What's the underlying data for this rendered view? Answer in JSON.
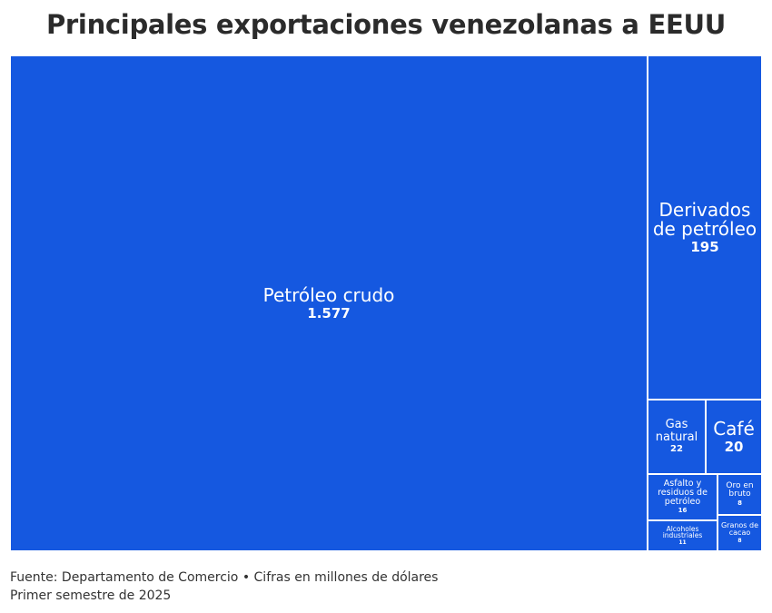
{
  "title": "Principales exportaciones venezolanas a EEUU",
  "source_line1": "Fuente: Departamento de Comercio • Cifras en millones de dólares",
  "source_line2": "Primer semestre de 2025",
  "colors": {
    "tile": "#1558e0",
    "border": "#ffffff",
    "text": "#ffffff"
  },
  "chart_data": {
    "type": "treemap",
    "title": "Principales exportaciones venezolanas a EEUU",
    "unit": "millones de dólares",
    "items": [
      {
        "name": "Petróleo crudo",
        "value": 1577,
        "value_label": "1.577"
      },
      {
        "name": "Derivados de petróleo",
        "value": 195,
        "value_label": "195"
      },
      {
        "name": "Gas natural",
        "value": 22,
        "value_label": "22"
      },
      {
        "name": "Café",
        "value": 20,
        "value_label": "20"
      },
      {
        "name": "Asfalto y residuos de petróleo",
        "value": 16,
        "value_label": "16"
      },
      {
        "name": "Oro en bruto",
        "value": 8,
        "value_label": "8"
      },
      {
        "name": "Alcoholes industriales",
        "value": 11,
        "value_label": "11"
      },
      {
        "name": "Granos de cacao",
        "value": 8,
        "value_label": "8"
      }
    ]
  }
}
